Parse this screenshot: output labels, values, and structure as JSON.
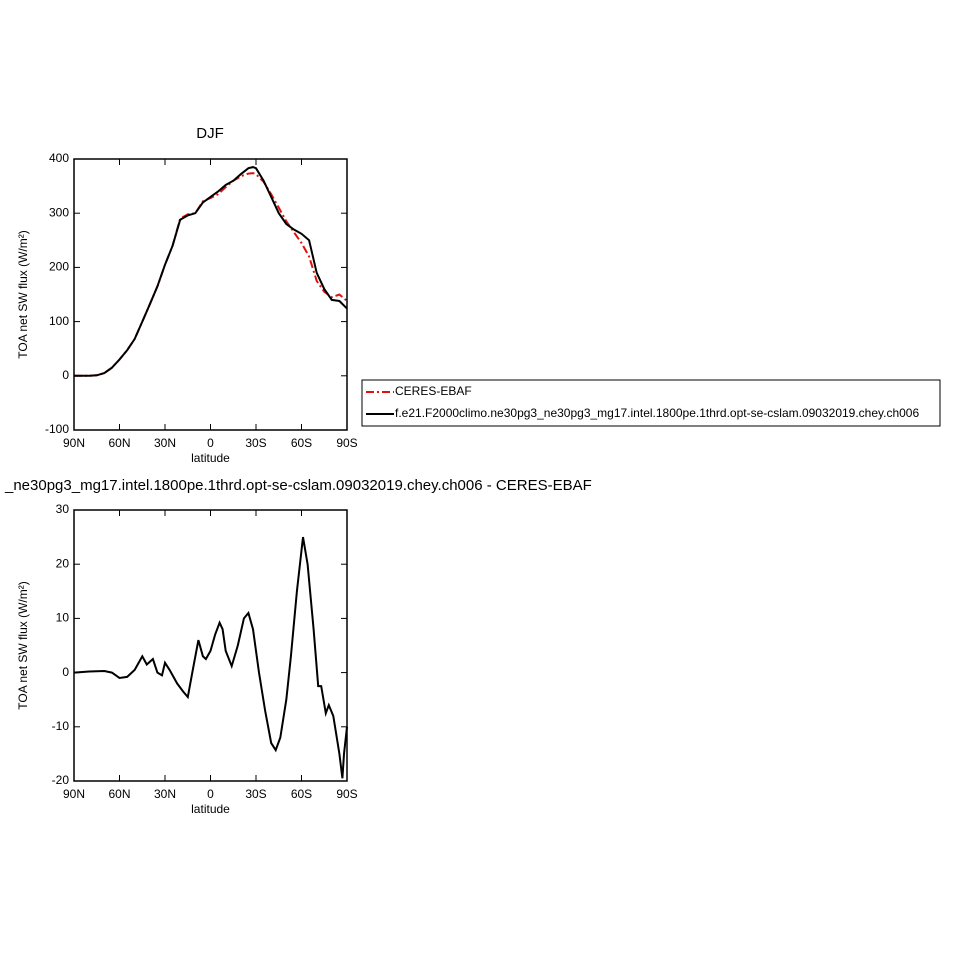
{
  "chart_data": [
    {
      "type": "line",
      "title": "DJF",
      "xlabel": "latitude",
      "ylabel": "TOA net SW flux (W/m²)",
      "x": [
        90,
        85,
        80,
        75,
        70,
        65,
        60,
        55,
        50,
        45,
        40,
        35,
        30,
        25,
        20,
        15,
        10,
        5,
        0,
        -5,
        -10,
        -15,
        -20,
        -25,
        -28,
        -30,
        -35,
        -40,
        -45,
        -50,
        -55,
        -60,
        -65,
        -70,
        -75,
        -80,
        -85,
        -90
      ],
      "series": [
        {
          "name": "CERES-EBAF",
          "color": "#e01010",
          "dash": true,
          "values": [
            0,
            0,
            0,
            1,
            5,
            15,
            30,
            47,
            68,
            100,
            132,
            165,
            205,
            240,
            290,
            298,
            300,
            322,
            328,
            335,
            348,
            360,
            368,
            373,
            374,
            372,
            358,
            335,
            310,
            285,
            265,
            245,
            220,
            175,
            155,
            145,
            150,
            138
          ]
        },
        {
          "name": "f.e21.F2000climo.ne30pg3_ne30pg3_mg17.intel.1800pe.1thrd.opt-se-cslam.09032019.chey.ch006",
          "color": "#000000",
          "dash": false,
          "values": [
            0,
            0,
            0,
            1,
            5,
            15,
            30,
            47,
            68,
            100,
            132,
            165,
            205,
            240,
            288,
            296,
            300,
            320,
            330,
            340,
            352,
            360,
            372,
            383,
            385,
            383,
            360,
            330,
            300,
            280,
            270,
            262,
            250,
            190,
            160,
            140,
            138,
            124
          ]
        }
      ],
      "xlim": [
        90,
        -90
      ],
      "xticks": [
        {
          "value": 90,
          "label": "90N"
        },
        {
          "value": 60,
          "label": "60N"
        },
        {
          "value": 30,
          "label": "30N"
        },
        0,
        {
          "value": -30,
          "label": "30S"
        },
        {
          "value": -60,
          "label": "60S"
        },
        {
          "value": -90,
          "label": "90S"
        }
      ],
      "ylim": [
        -100,
        400
      ],
      "yticks": [
        -100,
        0,
        100,
        200,
        300,
        400
      ]
    },
    {
      "type": "line",
      "title": "_ne30pg3_mg17.intel.1800pe.1thrd.opt-se-cslam.09032019.chey.ch006 - CERES-EBAF",
      "xlabel": "latitude",
      "ylabel": "TOA net SW flux (W/m²)",
      "x": [
        90,
        80,
        70,
        65,
        60,
        55,
        50,
        45,
        42,
        38,
        35,
        32,
        30,
        27,
        22,
        18,
        15,
        12,
        8,
        5,
        3,
        0,
        -3,
        -6,
        -8,
        -10,
        -14,
        -18,
        -22,
        -25,
        -28,
        -32,
        -36,
        -40,
        -43,
        -46,
        -50,
        -53,
        -57,
        -61,
        -64,
        -68,
        -71,
        -73,
        -76,
        -78,
        -81,
        -85,
        -87,
        -88,
        -90
      ],
      "series": [
        {
          "name": null,
          "color": "#000000",
          "dash": false,
          "values": [
            0,
            0.2,
            0.3,
            0,
            -1,
            -0.8,
            0.5,
            3,
            1.5,
            2.5,
            0,
            -0.5,
            1.8,
            0.5,
            -2,
            -3.5,
            -4.5,
            0,
            6,
            3,
            2.5,
            4,
            7,
            9.2,
            8,
            4,
            1.2,
            5,
            10,
            11,
            8,
            0,
            -7,
            -13,
            -14.3,
            -12,
            -5,
            3,
            15,
            25,
            20,
            8,
            -2.5,
            -2.5,
            -7.5,
            -6,
            -8,
            -15,
            -19.5,
            -15,
            -10
          ]
        }
      ],
      "xlim": [
        90,
        -90
      ],
      "xticks": [
        {
          "value": 90,
          "label": "90N"
        },
        {
          "value": 60,
          "label": "60N"
        },
        {
          "value": 30,
          "label": "30N"
        },
        0,
        {
          "value": -30,
          "label": "30S"
        },
        {
          "value": -60,
          "label": "60S"
        },
        {
          "value": -90,
          "label": "90S"
        }
      ],
      "ylim": [
        -20,
        30
      ],
      "yticks": [
        -20,
        -10,
        0,
        10,
        20,
        30
      ]
    }
  ]
}
